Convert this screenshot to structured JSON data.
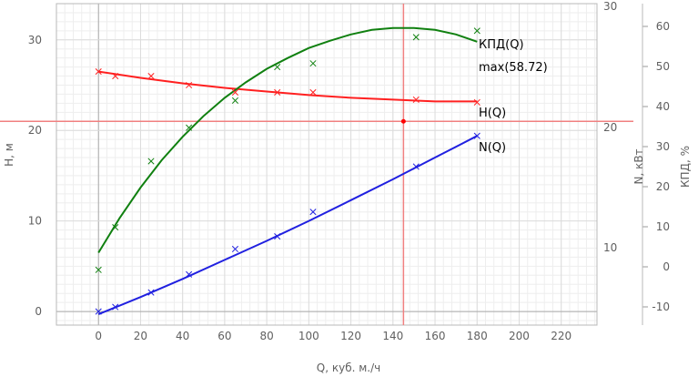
{
  "chart_data": {
    "type": "line",
    "xlabel": "Q, куб. м./ч",
    "x_ticks": [
      0,
      20,
      40,
      60,
      80,
      100,
      120,
      140,
      160,
      180,
      200,
      220
    ],
    "xlim": [
      -20,
      237
    ],
    "axes": {
      "H": {
        "label": "Н, м",
        "ylim": [
          -1.5,
          34
        ],
        "ticks": [
          0,
          10,
          20,
          30
        ]
      },
      "N": {
        "label": "N, кВт",
        "ticks": [
          10,
          20,
          30
        ]
      },
      "KPD": {
        "label": "КПД, %",
        "ticks": [
          -10,
          0,
          10,
          20,
          30,
          40,
          50,
          60
        ]
      }
    },
    "series": [
      {
        "name": "H(Q)",
        "axis": "H",
        "color": "#ff2020",
        "points": [
          [
            0,
            26.5
          ],
          [
            8,
            26.0
          ],
          [
            25,
            26.0
          ],
          [
            43,
            25.0
          ],
          [
            65,
            24.2
          ],
          [
            85,
            24.2
          ],
          [
            102,
            24.2
          ],
          [
            151,
            23.4
          ],
          [
            180,
            23.1
          ]
        ],
        "fit_x": [
          0,
          20,
          40,
          60,
          80,
          100,
          120,
          140,
          160,
          180
        ],
        "fit_y": [
          26.5,
          25.8,
          25.2,
          24.7,
          24.3,
          23.9,
          23.6,
          23.4,
          23.2,
          23.2
        ]
      },
      {
        "name": "N(Q)",
        "axis": "H",
        "color": "#2020e0",
        "points": [
          [
            0,
            0.0
          ],
          [
            8,
            0.5
          ],
          [
            25,
            2.1
          ],
          [
            43,
            4.1
          ],
          [
            65,
            6.9
          ],
          [
            85,
            8.3
          ],
          [
            102,
            11.0
          ],
          [
            151,
            16.0
          ],
          [
            180,
            19.4
          ]
        ],
        "fit_x": [
          0,
          20,
          40,
          60,
          80,
          100,
          120,
          140,
          160,
          180
        ],
        "fit_y": [
          -0.3,
          1.6,
          3.6,
          5.7,
          7.8,
          10.0,
          12.3,
          14.6,
          17.0,
          19.4
        ]
      },
      {
        "name": "КПД(Q)",
        "axis": "H",
        "color": "#108010",
        "points": [
          [
            0,
            4.6
          ],
          [
            8,
            9.3
          ],
          [
            25,
            16.6
          ],
          [
            43,
            20.3
          ],
          [
            65,
            23.3
          ],
          [
            85,
            27.0
          ],
          [
            102,
            27.4
          ],
          [
            151,
            30.3
          ],
          [
            180,
            31.0
          ]
        ],
        "fit_x": [
          0,
          10,
          20,
          30,
          40,
          50,
          60,
          70,
          80,
          90,
          100,
          110,
          120,
          130,
          140,
          150,
          160,
          170,
          180
        ],
        "fit_y": [
          6.5,
          10.3,
          13.7,
          16.7,
          19.3,
          21.6,
          23.6,
          25.3,
          26.8,
          28.0,
          29.1,
          29.9,
          30.6,
          31.1,
          31.3,
          31.3,
          31.1,
          30.6,
          29.8
        ]
      }
    ],
    "annotations": {
      "kpd_max": "max(58.72)",
      "operating_point": {
        "x": 145,
        "y": 21.0
      }
    },
    "grid": true
  }
}
